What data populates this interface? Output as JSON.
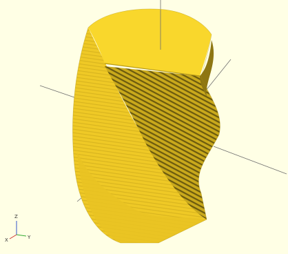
{
  "viewport": {
    "background_color": "#ffffe5",
    "model_color": "#f9d72c",
    "model_shadow_color": "#8a7510",
    "axis_color": "#555555"
  },
  "axis_indicator": {
    "x_label": "X",
    "y_label": "Y",
    "z_label": "Z",
    "x_color": "#cc3333",
    "y_color": "#33aa33",
    "z_color": "#3355cc"
  }
}
